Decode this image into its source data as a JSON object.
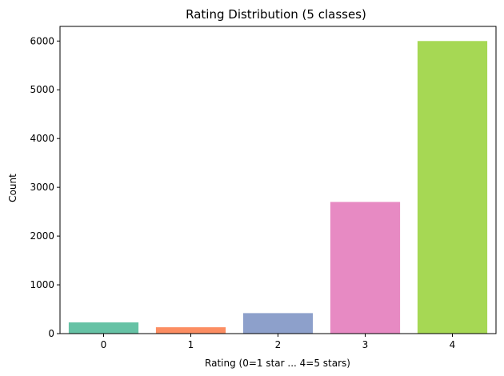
{
  "chart_data": {
    "type": "bar",
    "title": "Rating Distribution (5 classes)",
    "xlabel": "Rating (0=1 star ... 4=5 stars)",
    "ylabel": "Count",
    "categories": [
      "0",
      "1",
      "2",
      "3",
      "4"
    ],
    "values": [
      230,
      130,
      420,
      2700,
      6000
    ],
    "colors": [
      "#66c2a5",
      "#fc8d62",
      "#8da0cb",
      "#e78ac3",
      "#a6d854"
    ],
    "ylim": [
      0,
      6300
    ],
    "yticks": [
      0,
      1000,
      2000,
      3000,
      4000,
      5000,
      6000
    ],
    "grid": false,
    "legend": "none"
  }
}
